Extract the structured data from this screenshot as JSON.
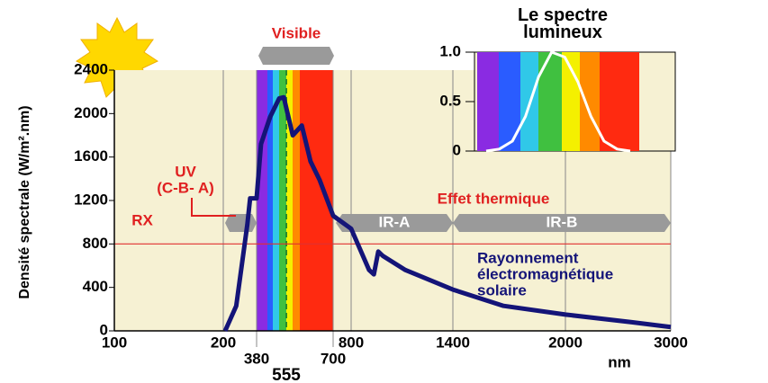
{
  "chart_data": [
    {
      "type": "line",
      "y_label": "Densité spectrale (W/m².nm)",
      "x_unit": "nm",
      "x": [
        210,
        270,
        330,
        345,
        380,
        406,
        460,
        513,
        540,
        575,
        603,
        630,
        658,
        700,
        800,
        906,
        934,
        960,
        987,
        1120,
        1400,
        1670,
        2000,
        2630,
        3000
      ],
      "values": [
        0,
        230,
        980,
        1220,
        1220,
        1720,
        1970,
        2140,
        2150,
        1800,
        1890,
        1560,
        1390,
        1060,
        940,
        560,
        520,
        730,
        690,
        560,
        380,
        230,
        150,
        80,
        35
      ],
      "color": "#141478",
      "xlim": [
        100,
        3000
      ],
      "xticks": [
        100,
        200,
        380,
        555,
        700,
        800,
        1400,
        2000,
        3000
      ],
      "ylim": [
        0,
        2400
      ],
      "yticks": [
        0,
        400,
        800,
        1200,
        1600,
        2000,
        2400
      ],
      "grid": true,
      "ref_line": {
        "value": 800,
        "color": "#e03030"
      },
      "annotations": {
        "visible": "Visible",
        "rx": "RX",
        "uv": [
          "UV",
          "(C-B- A)"
        ],
        "thermal": "Effet thermique",
        "ira": "IR-A",
        "irb": "IR-B",
        "solar": [
          "Rayonnement",
          "électromagnétique",
          "solaire"
        ]
      }
    },
    {
      "type": "line",
      "title": "Le spectre lumineux",
      "values": [
        0,
        0.02,
        0.1,
        0.35,
        0.75,
        1.0,
        0.95,
        0.7,
        0.35,
        0.1,
        0.02,
        0
      ],
      "color": "#ffffff",
      "ylim": [
        0,
        1
      ],
      "yticks": [
        0,
        0.5,
        {
          "value": 1,
          "label": "1.0"
        }
      ]
    }
  ]
}
